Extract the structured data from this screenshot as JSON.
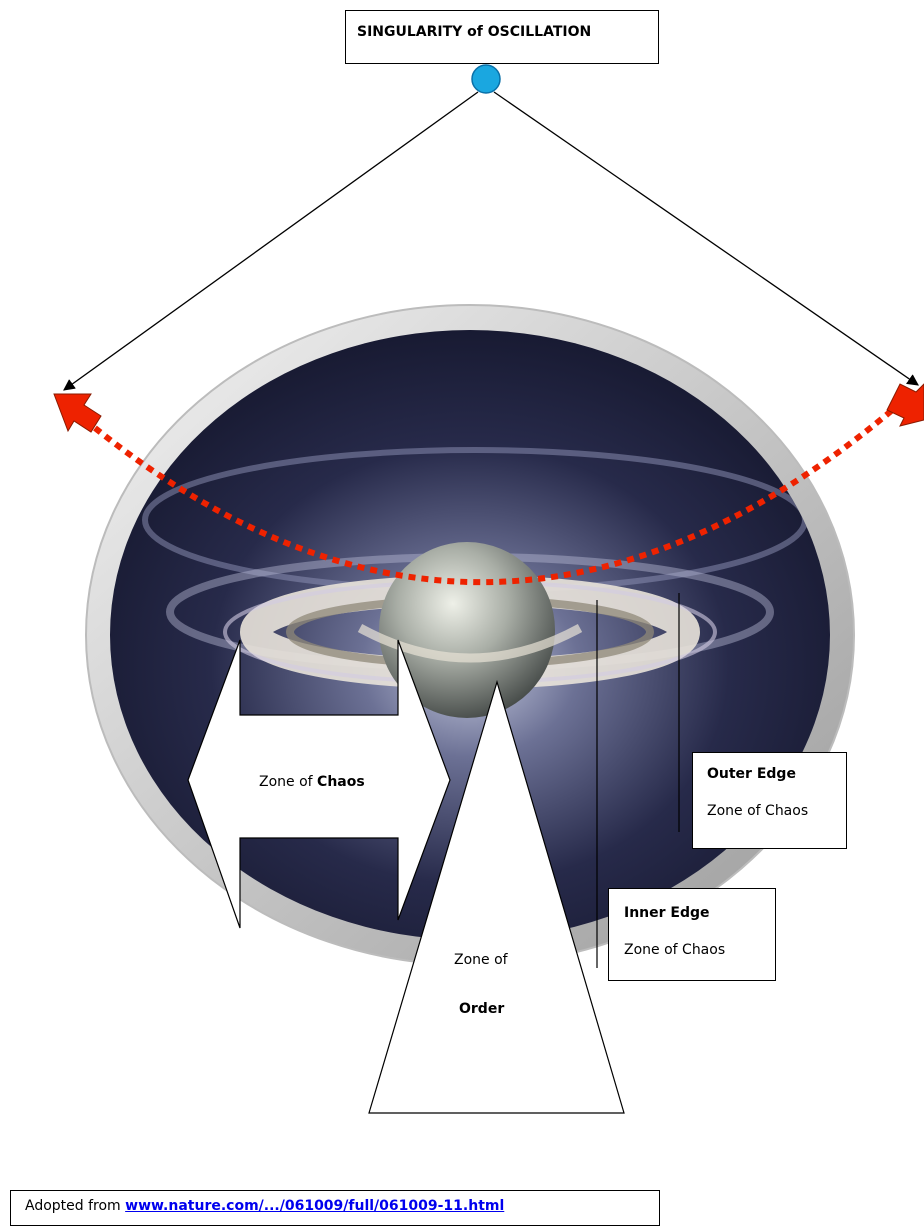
{
  "title": "SINGULARITY of OSCILLATION",
  "chaos_zone": {
    "prefix": "Zone of ",
    "bold": "Chaos"
  },
  "order_zone": {
    "line1": "Zone of",
    "line2": "Order"
  },
  "outer_edge": {
    "heading": "Outer Edge",
    "label": "Zone of Chaos"
  },
  "inner_edge": {
    "heading": "Inner Edge",
    "label": "Zone of Chaos"
  },
  "credit": {
    "prefix": "Adopted from ",
    "link": "www.nature.com/.../061009/full/061009-11.html"
  },
  "colors": {
    "singularity_dot": "#1aa7e0",
    "pendulum_path": "#ee2200",
    "swing_arrow": "#ee2200"
  }
}
